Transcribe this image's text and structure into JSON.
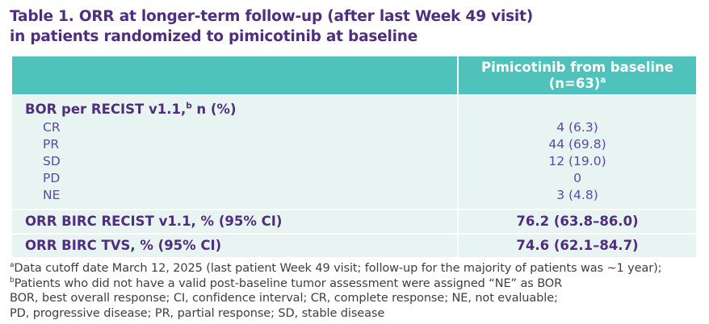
{
  "title": {
    "line1": "Table 1. ORR at longer-term follow-up (after last Week 49 visit)",
    "line2": "in patients randomized to pimicotinib at baseline"
  },
  "table": {
    "header": {
      "line1": "Pimicotinib from baseline",
      "line2_base": "(n=63)",
      "line2_sup": "a"
    },
    "bor_section": {
      "label_main": "BOR per RECIST v1.1,",
      "label_sup": "b",
      "label_rest": " n (%)",
      "rows": [
        {
          "label": "CR",
          "value": "4 (6.3)"
        },
        {
          "label": "PR",
          "value": "44 (69.8)"
        },
        {
          "label": "SD",
          "value": "12 (19.0)"
        },
        {
          "label": "PD",
          "value": "0"
        },
        {
          "label": "NE",
          "value": "3 (4.8)"
        }
      ]
    },
    "orr_rows": [
      {
        "label": "ORR BIRC RECIST v1.1, % (95% CI)",
        "value": "76.2 (63.8–86.0)"
      },
      {
        "label": "ORR BIRC TVS, % (95% CI)",
        "value": "74.6 (62.1–84.7)"
      }
    ]
  },
  "footnotes": [
    {
      "sup": "a",
      "text": "Data cutoff date March 12, 2025 (last patient Week 49 visit; follow-up for the majority of patients was ~1 year);"
    },
    {
      "sup": "b",
      "text": "Patients who did not have a valid post-baseline tumor assessment were assigned “NE” as BOR"
    },
    {
      "sup": "",
      "text": "BOR, best overall response; CI, confidence interval; CR, complete response; NE, not evaluable;"
    },
    {
      "sup": "",
      "text": "PD, progressive disease; PR, partial response; SD, stable disease"
    }
  ],
  "colors": {
    "title_purple": "#4F2D7F",
    "body_purple": "#5B4B9E",
    "teal": "#4FC2BC",
    "mint": "#E8F4F1",
    "footnote_gray": "#3E3E3E",
    "white": "#FFFFFF"
  },
  "chart_data": {
    "type": "table",
    "title": "Table 1. ORR at longer-term follow-up (after last Week 49 visit) in patients randomized to pimicotinib at baseline",
    "columns": [
      "",
      "Pimicotinib from baseline (n=63)"
    ],
    "rows": [
      [
        "BOR per RECIST v1.1, n (%)",
        ""
      ],
      [
        "CR",
        "4 (6.3)"
      ],
      [
        "PR",
        "44 (69.8)"
      ],
      [
        "SD",
        "12 (19.0)"
      ],
      [
        "PD",
        "0"
      ],
      [
        "NE",
        "3 (4.8)"
      ],
      [
        "ORR BIRC RECIST v1.1, % (95% CI)",
        "76.2 (63.8–86.0)"
      ],
      [
        "ORR BIRC TVS, % (95% CI)",
        "74.6 (62.1–84.7)"
      ]
    ]
  }
}
